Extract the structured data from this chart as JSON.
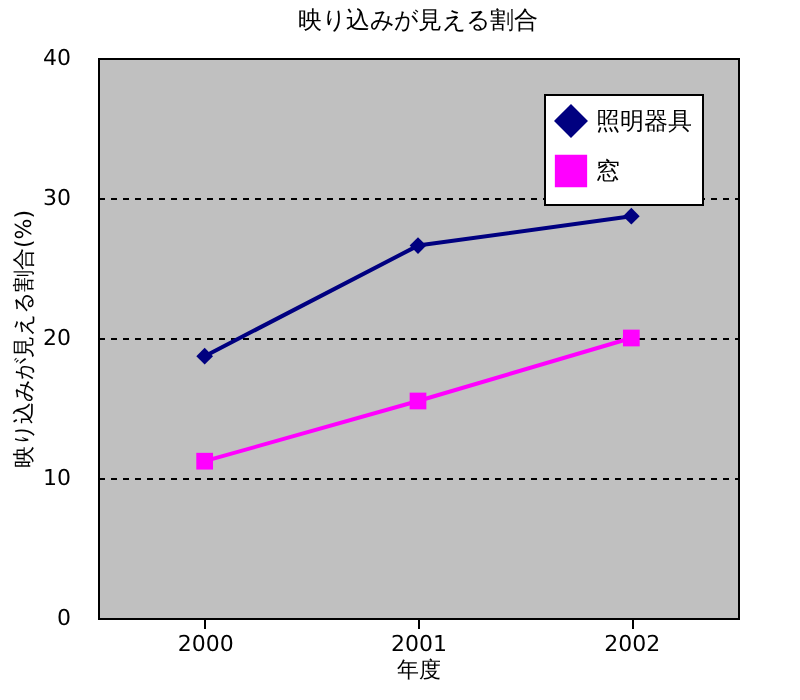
{
  "chart_data": {
    "type": "line",
    "title": "映り込みが見える割合",
    "xlabel": "年度",
    "ylabel": "映り込みが見える割合(%)",
    "categories": [
      "2000",
      "2001",
      "2002"
    ],
    "series": [
      {
        "name": "照明器具",
        "color": "#000080",
        "values": [
          18.7,
          26.6,
          28.7
        ],
        "marker": "diamond"
      },
      {
        "name": "窓",
        "color": "#ff00ff",
        "values": [
          11.2,
          15.5,
          20.0
        ],
        "marker": "square"
      }
    ],
    "ylim": [
      0,
      40
    ],
    "yticks": [
      0,
      10,
      20,
      30,
      40
    ],
    "grid": "y",
    "legend": "top right",
    "line_style": "solid"
  }
}
